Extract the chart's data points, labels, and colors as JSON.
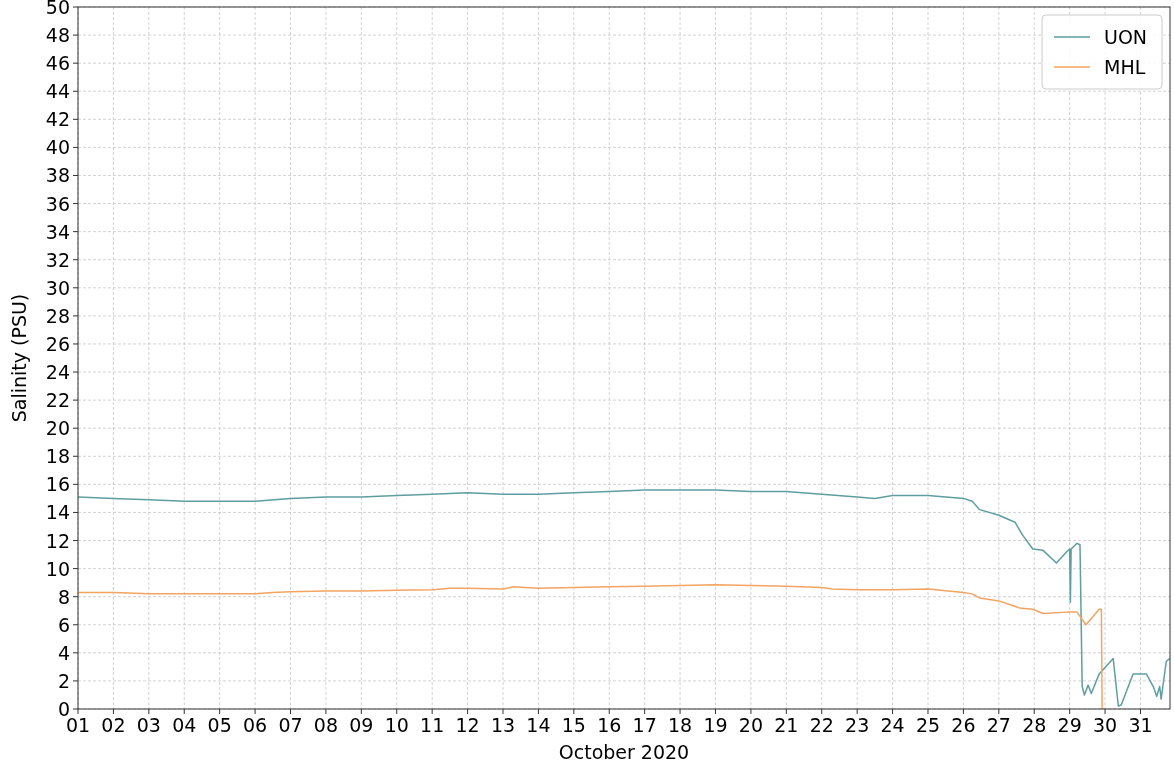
{
  "chart_data": {
    "type": "line",
    "xlabel": "October 2020",
    "ylabel": "Salinity (PSU)",
    "xlim": [
      "2020-10-01",
      "2020-10-31T20:00"
    ],
    "ylim": [
      0,
      50
    ],
    "yticks": [
      0,
      2,
      4,
      6,
      8,
      10,
      12,
      14,
      16,
      18,
      20,
      22,
      24,
      26,
      28,
      30,
      32,
      34,
      36,
      38,
      40,
      42,
      44,
      46,
      48,
      50
    ],
    "xticks": [
      {
        "value": "2020-10-01",
        "label": "01"
      },
      {
        "value": "2020-10-02",
        "label": "02"
      },
      {
        "value": "2020-10-03",
        "label": "03"
      },
      {
        "value": "2020-10-04",
        "label": "04"
      },
      {
        "value": "2020-10-05",
        "label": "05"
      },
      {
        "value": "2020-10-06",
        "label": "06"
      },
      {
        "value": "2020-10-07",
        "label": "07"
      },
      {
        "value": "2020-10-08",
        "label": "08"
      },
      {
        "value": "2020-10-09",
        "label": "09"
      },
      {
        "value": "2020-10-10",
        "label": "10"
      },
      {
        "value": "2020-10-11",
        "label": "11"
      },
      {
        "value": "2020-10-12",
        "label": "12"
      },
      {
        "value": "2020-10-13",
        "label": "13"
      },
      {
        "value": "2020-10-14",
        "label": "14"
      },
      {
        "value": "2020-10-15",
        "label": "15"
      },
      {
        "value": "2020-10-16",
        "label": "16"
      },
      {
        "value": "2020-10-17",
        "label": "17"
      },
      {
        "value": "2020-10-18",
        "label": "18"
      },
      {
        "value": "2020-10-19",
        "label": "19"
      },
      {
        "value": "2020-10-20",
        "label": "20"
      },
      {
        "value": "2020-10-21",
        "label": "21"
      },
      {
        "value": "2020-10-22",
        "label": "22"
      },
      {
        "value": "2020-10-23",
        "label": "23"
      },
      {
        "value": "2020-10-24",
        "label": "24"
      },
      {
        "value": "2020-10-25",
        "label": "25"
      },
      {
        "value": "2020-10-26",
        "label": "26"
      },
      {
        "value": "2020-10-27",
        "label": "27"
      },
      {
        "value": "2020-10-28",
        "label": "28"
      },
      {
        "value": "2020-10-29",
        "label": "29"
      },
      {
        "value": "2020-10-30",
        "label": "30"
      },
      {
        "value": "2020-10-31",
        "label": "31"
      }
    ],
    "grid": true,
    "legend": "top right",
    "line_style": "solid",
    "series": [
      {
        "name": "UON",
        "color": "#5f9ea0",
        "x": [
          "2020-10-01",
          "2020-10-02",
          "2020-10-03",
          "2020-10-04",
          "2020-10-05",
          "2020-10-06",
          "2020-10-07",
          "2020-10-08",
          "2020-10-09",
          "2020-10-10",
          "2020-10-11",
          "2020-10-12",
          "2020-10-13",
          "2020-10-14",
          "2020-10-15",
          "2020-10-16",
          "2020-10-17",
          "2020-10-18",
          "2020-10-19",
          "2020-10-20",
          "2020-10-21",
          "2020-10-22",
          "2020-10-23",
          "2020-10-23T12:00",
          "2020-10-24",
          "2020-10-25",
          "2020-10-26",
          "2020-10-26T06:00",
          "2020-10-26T11:00",
          "2020-10-27",
          "2020-10-27T11:00",
          "2020-10-27T16:00",
          "2020-10-27T23:00",
          "2020-10-28T06:00",
          "2020-10-28T15:00",
          "2020-10-28T22:00",
          "2020-10-29",
          "2020-10-29T00:30",
          "2020-10-29T01:00",
          "2020-10-29T05:00",
          "2020-10-29T07:00",
          "2020-10-29T08:30",
          "2020-10-29T10:00",
          "2020-10-29T12:30",
          "2020-10-29T14:40",
          "2020-10-29T20:00",
          "2020-10-30T05:30",
          "2020-10-30T09:00",
          "2020-10-30T11:00",
          "2020-10-30T19:00",
          "2020-10-31T04:00",
          "2020-10-31T08:40",
          "2020-10-31T11:00",
          "2020-10-31T13:00",
          "2020-10-31T14:00",
          "2020-10-31T17:30",
          "2020-10-31T20:00"
        ],
        "values": [
          15.1,
          15.0,
          14.9,
          14.8,
          14.8,
          14.8,
          15.0,
          15.1,
          15.1,
          15.2,
          15.3,
          15.4,
          15.3,
          15.3,
          15.4,
          15.5,
          15.6,
          15.6,
          15.6,
          15.5,
          15.5,
          15.3,
          15.1,
          15.0,
          15.2,
          15.2,
          15.0,
          14.8,
          14.2,
          13.8,
          13.3,
          12.4,
          11.4,
          11.3,
          10.4,
          11.2,
          11.4,
          7.6,
          11.4,
          11.8,
          11.7,
          1.6,
          1.0,
          1.7,
          1.1,
          2.5,
          3.6,
          0.2,
          0.3,
          2.5,
          2.5,
          1.6,
          0.9,
          1.6,
          0.7,
          3.4,
          3.6
        ]
      },
      {
        "name": "MHL",
        "color": "#f4a460",
        "x": [
          "2020-10-01",
          "2020-10-02",
          "2020-10-03",
          "2020-10-04",
          "2020-10-05",
          "2020-10-06",
          "2020-10-06T12:00",
          "2020-10-07",
          "2020-10-08",
          "2020-10-09",
          "2020-10-10",
          "2020-10-11",
          "2020-10-11T12:00",
          "2020-10-12",
          "2020-10-13",
          "2020-10-13T07:00",
          "2020-10-14",
          "2020-10-15",
          "2020-10-16",
          "2020-10-17",
          "2020-10-18",
          "2020-10-19",
          "2020-10-20",
          "2020-10-21",
          "2020-10-22",
          "2020-10-22T07:00",
          "2020-10-23",
          "2020-10-24",
          "2020-10-25",
          "2020-10-26",
          "2020-10-26T06:00",
          "2020-10-26T11:00",
          "2020-10-27",
          "2020-10-27T14:00",
          "2020-10-27T23:00",
          "2020-10-28T06:00",
          "2020-10-28T22:00",
          "2020-10-29T05:00",
          "2020-10-29T09:00",
          "2020-10-29T11:00",
          "2020-10-29T16:00",
          "2020-10-29T20:00",
          "2020-10-29T21:30",
          "2020-10-29T22:00"
        ],
        "values": [
          8.3,
          8.3,
          8.2,
          8.2,
          8.2,
          8.2,
          8.3,
          8.35,
          8.4,
          8.4,
          8.45,
          8.5,
          8.6,
          8.6,
          8.55,
          8.7,
          8.6,
          8.65,
          8.7,
          8.75,
          8.8,
          8.85,
          8.8,
          8.75,
          8.65,
          8.55,
          8.5,
          8.5,
          8.55,
          8.3,
          8.2,
          7.9,
          7.7,
          7.2,
          7.1,
          6.8,
          6.9,
          6.9,
          6.3,
          6.0,
          6.6,
          7.1,
          7.1,
          0
        ]
      }
    ]
  }
}
